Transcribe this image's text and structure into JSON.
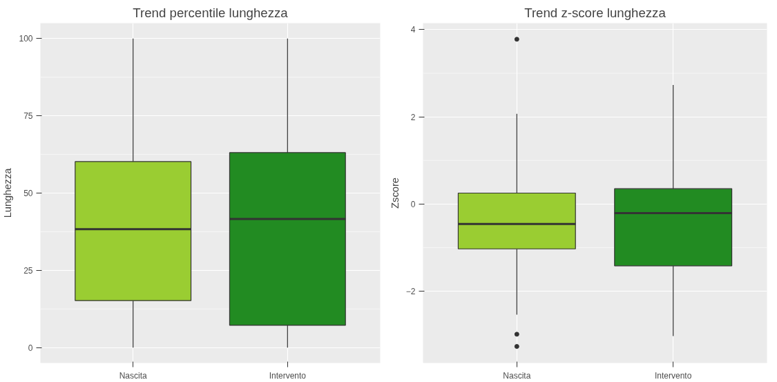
{
  "chart_data": [
    {
      "type": "box",
      "title": "Trend percentile lunghezza",
      "ylabel": "Lunghezza",
      "categories": [
        "Nascita",
        "Intervento"
      ],
      "colors": [
        "#9acd32",
        "#228b22"
      ],
      "boxes": [
        {
          "low": 0,
          "q1": 15.2,
          "median": 38.3,
          "q3": 60.2,
          "high": 100
        },
        {
          "low": 0,
          "q1": 7.2,
          "median": 41.6,
          "q3": 63.1,
          "high": 100
        }
      ],
      "ylim": [
        -5,
        105
      ],
      "yticks": [
        0,
        25,
        50,
        75,
        100
      ],
      "grid": true
    },
    {
      "type": "box",
      "title": "Trend z-score lunghezza",
      "ylabel": "Zscore",
      "categories": [
        "Nascita",
        "Intervento"
      ],
      "colors": [
        "#9acd32",
        "#228b22"
      ],
      "boxes": [
        {
          "low": -2.54,
          "q1": -1.03,
          "median": -0.46,
          "q3": 0.25,
          "high": 2.07,
          "outliers": [
            3.78,
            -2.99,
            -3.27
          ]
        },
        {
          "low": -3.03,
          "q1": -1.42,
          "median": -0.21,
          "q3": 0.35,
          "high": 2.73
        }
      ],
      "ylim": [
        -3.65,
        4.15
      ],
      "yticks": [
        -2,
        0,
        2,
        4
      ],
      "grid": true
    }
  ]
}
